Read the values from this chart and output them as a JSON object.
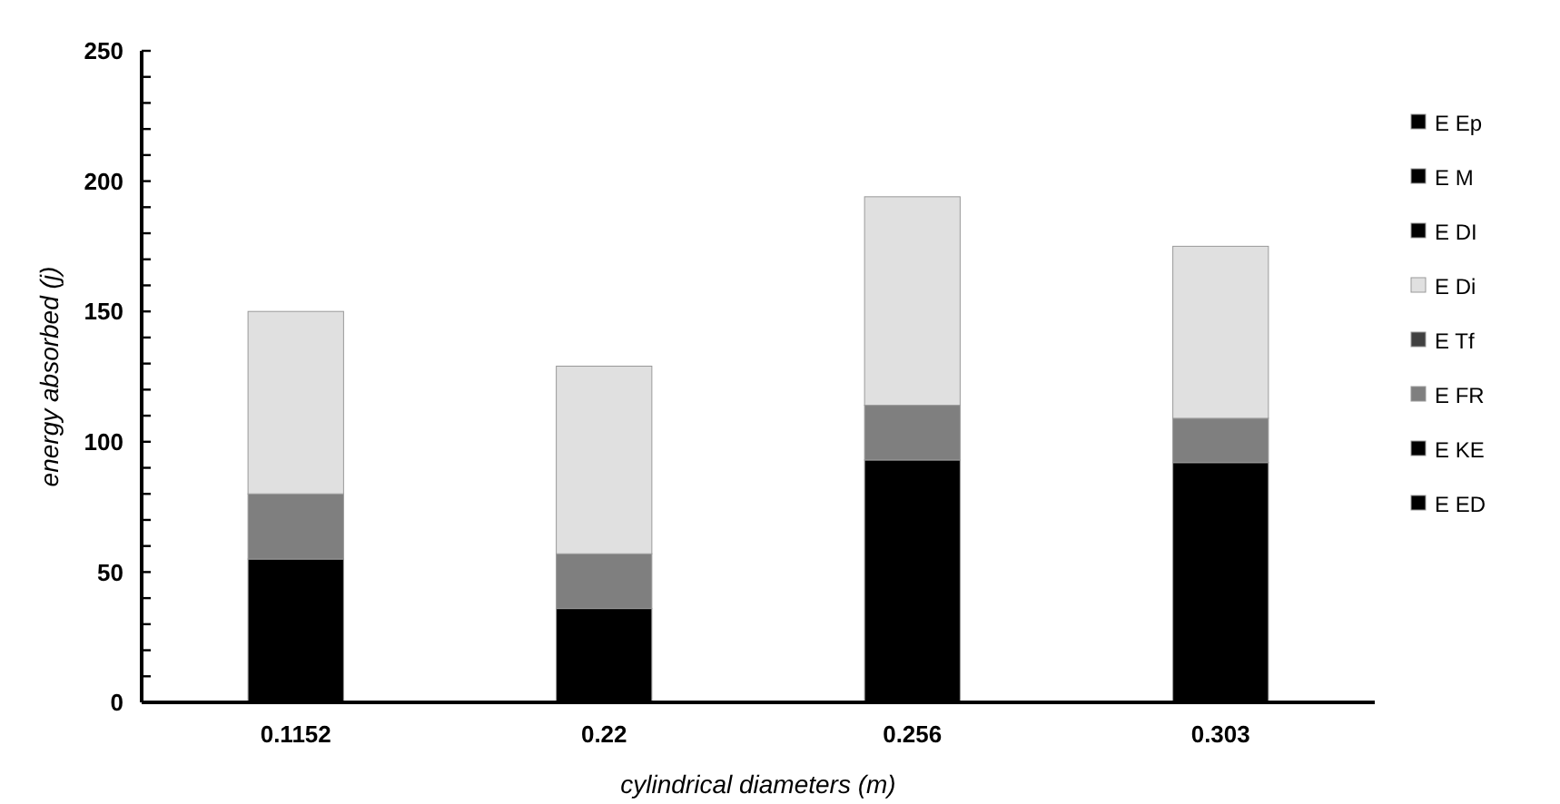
{
  "chart_data": {
    "type": "bar",
    "stacked": true,
    "xlabel": "cylindrical diameters (m)",
    "ylabel": "energy absorbed (j)",
    "categories": [
      "0.1152",
      "0.22",
      "0.256",
      "0.303"
    ],
    "series": [
      {
        "name": "E ED",
        "color": "#000000",
        "values": [
          0,
          0,
          0,
          0
        ]
      },
      {
        "name": "E KE",
        "color": "#000000",
        "values": [
          55,
          36,
          93,
          92
        ]
      },
      {
        "name": "E FR",
        "color": "#7f7f7f",
        "values": [
          25,
          21,
          21,
          17
        ]
      },
      {
        "name": "E Tf",
        "color": "#404040",
        "values": [
          0,
          0,
          0,
          0
        ]
      },
      {
        "name": "E Di",
        "color": "#e0e0e0",
        "values": [
          70,
          72,
          80,
          66
        ]
      },
      {
        "name": "E DI",
        "color": "#000000",
        "values": [
          0,
          0,
          0,
          0
        ]
      },
      {
        "name": "E M",
        "color": "#000000",
        "values": [
          0,
          0,
          0,
          0
        ]
      },
      {
        "name": "E Ep",
        "color": "#000000",
        "values": [
          0,
          0,
          0,
          0
        ]
      }
    ],
    "ylim": [
      0,
      250
    ],
    "yticks": [
      0,
      {
        "value": 10,
        "label": null
      },
      {
        "value": 20,
        "label": null
      },
      {
        "value": 30,
        "label": null
      },
      {
        "value": 40,
        "label": null
      },
      50,
      {
        "value": 60,
        "label": null
      },
      {
        "value": 70,
        "label": null
      },
      {
        "value": 80,
        "label": null
      },
      {
        "value": 90,
        "label": null
      },
      100,
      {
        "value": 110,
        "label": null
      },
      {
        "value": 120,
        "label": null
      },
      {
        "value": 130,
        "label": null
      },
      {
        "value": 140,
        "label": null
      },
      150,
      {
        "value": 160,
        "label": null
      },
      {
        "value": 170,
        "label": null
      },
      {
        "value": 180,
        "label": null
      },
      {
        "value": 190,
        "label": null
      },
      200,
      {
        "value": 210,
        "label": null
      },
      {
        "value": 220,
        "label": null
      },
      {
        "value": 230,
        "label": null
      },
      {
        "value": 240,
        "label": null
      },
      250
    ],
    "legend": "right",
    "grid": false
  }
}
